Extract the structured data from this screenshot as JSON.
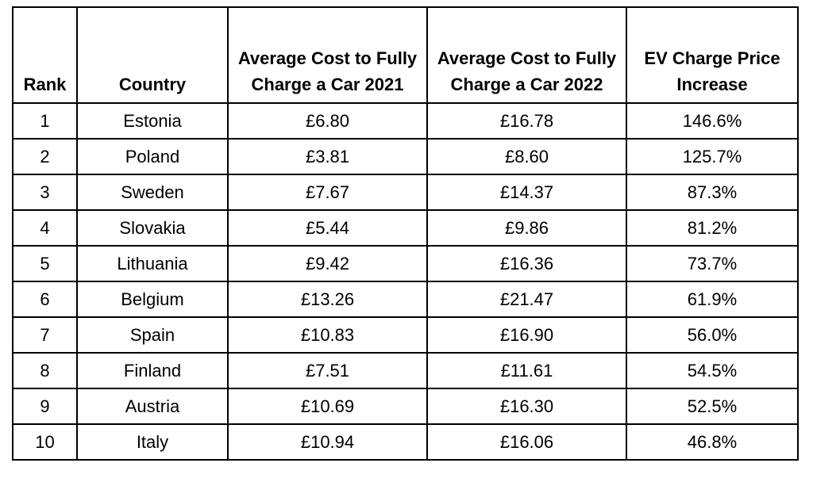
{
  "table": {
    "headers": [
      "Rank",
      "Country",
      "Average Cost to Fully Charge a Car 2021",
      "Average Cost to Fully Charge a Car 2022",
      "EV Charge Price Increase"
    ],
    "rows": [
      [
        "1",
        "Estonia",
        "£6.80",
        "£16.78",
        "146.6%"
      ],
      [
        "2",
        "Poland",
        "£3.81",
        "£8.60",
        "125.7%"
      ],
      [
        "3",
        "Sweden",
        "£7.67",
        "£14.37",
        "87.3%"
      ],
      [
        "4",
        "Slovakia",
        "£5.44",
        "£9.86",
        "81.2%"
      ],
      [
        "5",
        "Lithuania",
        "£9.42",
        "£16.36",
        "73.7%"
      ],
      [
        "6",
        "Belgium",
        "£13.26",
        "£21.47",
        "61.9%"
      ],
      [
        "7",
        "Spain",
        "£10.83",
        "£16.90",
        "56.0%"
      ],
      [
        "8",
        "Finland",
        "£7.51",
        "£11.61",
        "54.5%"
      ],
      [
        "9",
        "Austria",
        "£10.69",
        "£16.30",
        "52.5%"
      ],
      [
        "10",
        "Italy",
        "£10.94",
        "£16.06",
        "46.8%"
      ]
    ]
  }
}
